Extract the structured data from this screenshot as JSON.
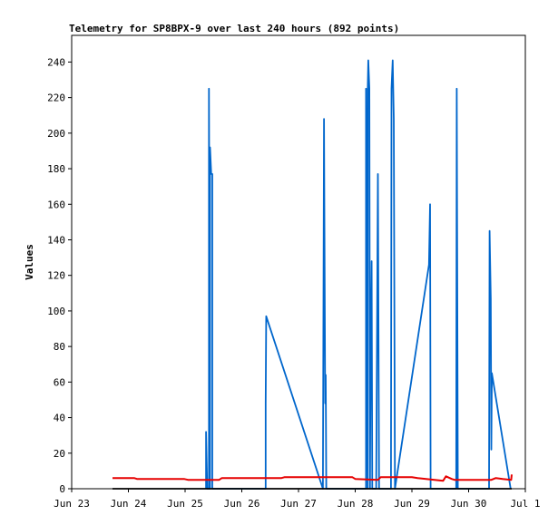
{
  "chart_data": {
    "type": "line",
    "title": "Telemetry for SP8BPX-9 over last 240 hours (892 points)",
    "xlabel": "",
    "ylabel": "Values",
    "x_ticks": [
      "Jun 23",
      "Jun 24",
      "Jun 25",
      "Jun 26",
      "Jun 27",
      "Jun 28",
      "Jun 29",
      "Jun 30",
      "Jul 1"
    ],
    "xlim": [
      0,
      8
    ],
    "y_ticks": [
      0,
      20,
      40,
      60,
      80,
      100,
      120,
      140,
      160,
      180,
      200,
      220,
      240
    ],
    "ylim": [
      0,
      255
    ],
    "grid": false,
    "series": [
      {
        "color": "#0066cc",
        "points": [
          [
            2.37,
            0
          ],
          [
            2.37,
            32
          ],
          [
            2.39,
            0
          ],
          [
            2.42,
            0
          ],
          [
            2.42,
            225
          ],
          [
            2.44,
            0
          ],
          [
            2.44,
            192
          ],
          [
            2.46,
            177
          ],
          [
            2.48,
            177
          ],
          [
            2.48,
            0
          ],
          [
            3.42,
            0
          ],
          [
            3.42,
            48
          ],
          [
            3.43,
            97
          ],
          [
            4.43,
            0
          ],
          [
            4.45,
            208
          ],
          [
            4.47,
            48
          ],
          [
            4.48,
            64
          ],
          [
            4.49,
            0
          ],
          [
            5.19,
            0
          ],
          [
            5.19,
            225
          ],
          [
            5.22,
            0
          ],
          [
            5.22,
            225
          ],
          [
            5.23,
            241
          ],
          [
            5.25,
            225
          ],
          [
            5.26,
            0
          ],
          [
            5.27,
            72
          ],
          [
            5.29,
            128
          ],
          [
            5.3,
            0
          ],
          [
            5.37,
            0
          ],
          [
            5.38,
            64
          ],
          [
            5.4,
            177
          ],
          [
            5.41,
            97
          ],
          [
            5.42,
            0
          ],
          [
            5.63,
            0
          ],
          [
            5.64,
            225
          ],
          [
            5.66,
            241
          ],
          [
            5.68,
            208
          ],
          [
            5.7,
            0
          ],
          [
            6.3,
            126
          ],
          [
            6.32,
            160
          ],
          [
            6.33,
            0
          ],
          [
            6.78,
            0
          ],
          [
            6.79,
            225
          ],
          [
            6.8,
            113
          ],
          [
            6.81,
            0
          ],
          [
            7.36,
            0
          ],
          [
            7.37,
            145
          ],
          [
            7.39,
            107
          ],
          [
            7.4,
            22
          ],
          [
            7.41,
            65
          ],
          [
            7.74,
            0
          ]
        ]
      },
      {
        "color": "#e60000",
        "points": [
          [
            0.72,
            6
          ],
          [
            0.74,
            6
          ],
          [
            1.1,
            6
          ],
          [
            1.15,
            5.5
          ],
          [
            1.98,
            5.5
          ],
          [
            2.05,
            5
          ],
          [
            2.6,
            5
          ],
          [
            2.65,
            6
          ],
          [
            3.7,
            6
          ],
          [
            3.75,
            6.5
          ],
          [
            4.95,
            6.5
          ],
          [
            5.0,
            5.5
          ],
          [
            5.4,
            5
          ],
          [
            5.45,
            6.5
          ],
          [
            6.0,
            6.5
          ],
          [
            6.1,
            6
          ],
          [
            6.4,
            5
          ],
          [
            6.55,
            4.5
          ],
          [
            6.6,
            7
          ],
          [
            6.7,
            5.5
          ],
          [
            6.75,
            5
          ],
          [
            7.4,
            5
          ],
          [
            7.48,
            6
          ],
          [
            7.6,
            5.5
          ],
          [
            7.75,
            5
          ],
          [
            7.76,
            8
          ]
        ]
      },
      {
        "color": "#000000",
        "points": [
          [
            0.72,
            0
          ],
          [
            7.76,
            0
          ]
        ]
      }
    ]
  }
}
